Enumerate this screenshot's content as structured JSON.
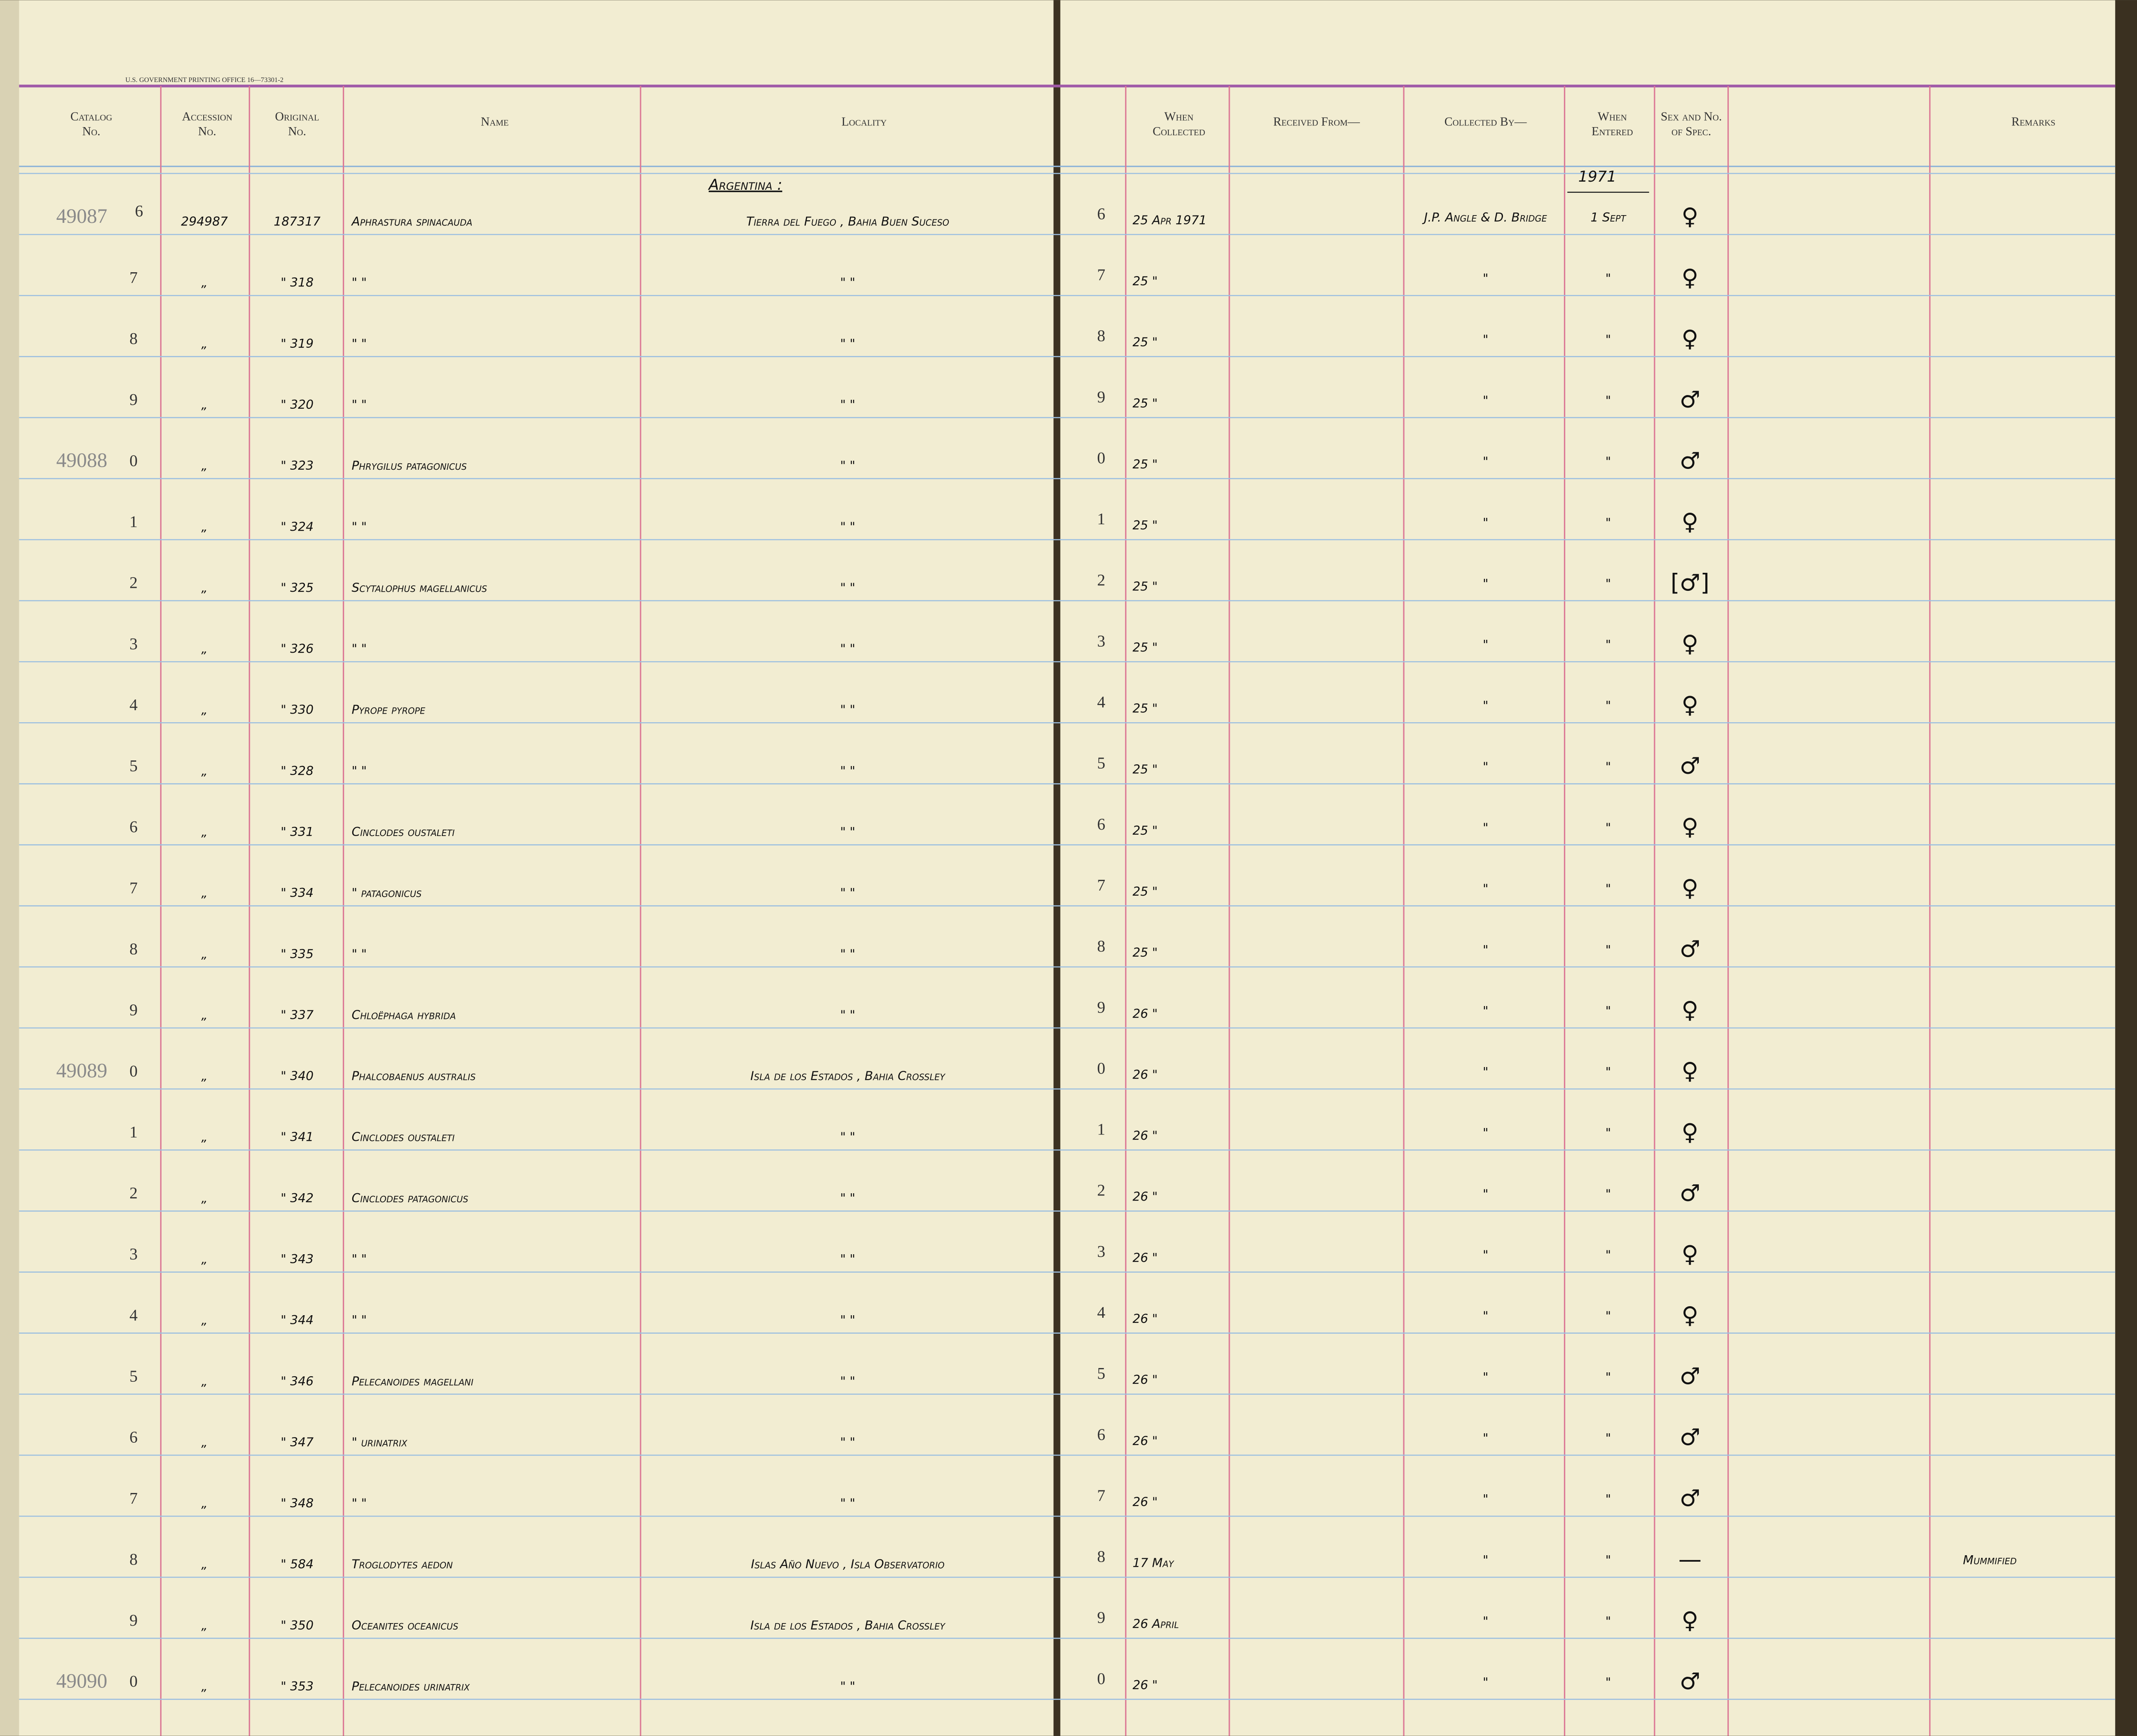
{
  "header": {
    "printer": "U.S. GOVERNMENT PRINTING OFFICE   16—73301-2",
    "left_columns": [
      "Catalog No.",
      "Accession No.",
      "Original No.",
      "Name",
      "Locality"
    ],
    "right_columns": [
      "When Collected",
      "Received From—",
      "Collected By—",
      "When Entered",
      "Sex and No. of Spec.",
      "Remarks"
    ],
    "country": "Argentina :",
    "year": "1971"
  },
  "rows": [
    {
      "catalog": "49087",
      "digit": "6",
      "accession": "294987",
      "original": "187317",
      "name": "Aphrastura spinacauda",
      "locality": "Tierra del Fuego , Bahia Buen Suceso",
      "collected": "25 Apr 1971",
      "collected_by": "J.P. Angle & D. Bridge",
      "entered": "1 Sept",
      "sex": "♀"
    },
    {
      "digit": "7",
      "accession": "„",
      "original": "\" 318",
      "name": "\"     \"",
      "locality": "\"                    \"",
      "collected": "25  \"",
      "collected_by": "\"",
      "entered": "\"",
      "sex": "♀"
    },
    {
      "digit": "8",
      "accession": "„",
      "original": "\" 319",
      "name": "\"     \"",
      "locality": "\"                    \"",
      "collected": "25  \"",
      "collected_by": "\"",
      "entered": "\"",
      "sex": "♀"
    },
    {
      "digit": "9",
      "accession": "„",
      "original": "\" 320",
      "name": "\"     \"",
      "locality": "\"                    \"",
      "collected": "25  \"",
      "collected_by": "\"",
      "entered": "\"",
      "sex": "♂"
    },
    {
      "catalog": "49088",
      "digit": "0",
      "accession": "„",
      "original": "\" 323",
      "name": "Phrygilus patagonicus",
      "locality": "\"                    \"",
      "collected": "25  \"",
      "collected_by": "\"",
      "entered": "\"",
      "sex": "♂"
    },
    {
      "digit": "1",
      "accession": "„",
      "original": "\" 324",
      "name": "\"     \"",
      "locality": "\"                    \"",
      "collected": "25  \"",
      "collected_by": "\"",
      "entered": "\"",
      "sex": "♀"
    },
    {
      "digit": "2",
      "accession": "„",
      "original": "\" 325",
      "name": "Scytalophus magellanicus",
      "locality": "\"                    \"",
      "collected": "25  \"",
      "collected_by": "\"",
      "entered": "\"",
      "sex": "[♂]"
    },
    {
      "digit": "3",
      "accession": "„",
      "original": "\" 326",
      "name": "\"     \"",
      "locality": "\"                    \"",
      "collected": "25  \"",
      "collected_by": "\"",
      "entered": "\"",
      "sex": "♀"
    },
    {
      "digit": "4",
      "accession": "„",
      "original": "\" 330",
      "name": "Pyrope  pyrope",
      "locality": "\"                    \"",
      "collected": "25  \"",
      "collected_by": "\"",
      "entered": "\"",
      "sex": "♀"
    },
    {
      "digit": "5",
      "accession": "„",
      "original": "\" 328",
      "name": "\"     \"",
      "locality": "\"                    \"",
      "collected": "25  \"",
      "collected_by": "\"",
      "entered": "\"",
      "sex": "♂"
    },
    {
      "digit": "6",
      "accession": "„",
      "original": "\" 331",
      "name": "Cinclodes oustaleti",
      "locality": "\"                    \"",
      "collected": "25  \"",
      "collected_by": "\"",
      "entered": "\"",
      "sex": "♀"
    },
    {
      "digit": "7",
      "accession": "„",
      "original": "\" 334",
      "name": "\"     patagonicus",
      "locality": "\"                    \"",
      "collected": "25  \"",
      "collected_by": "\"",
      "entered": "\"",
      "sex": "♀"
    },
    {
      "digit": "8",
      "accession": "„",
      "original": "\" 335",
      "name": "\"     \"",
      "locality": "\"                    \"",
      "collected": "25  \"",
      "collected_by": "\"",
      "entered": "\"",
      "sex": "♂"
    },
    {
      "digit": "9",
      "accession": "„",
      "original": "\" 337",
      "name": "Chloëphaga hybrida",
      "locality": "\"                    \"",
      "collected": "26  \"",
      "collected_by": "\"",
      "entered": "\"",
      "sex": "♀"
    },
    {
      "catalog": "49089",
      "digit": "0",
      "accession": "„",
      "original": "\" 340",
      "name": "Phalcobaenus australis",
      "locality": "Isla de los Estados , Bahia Crossley",
      "collected": "26  \"",
      "collected_by": "\"",
      "entered": "\"",
      "sex": "♀"
    },
    {
      "digit": "1",
      "accession": "„",
      "original": "\" 341",
      "name": "Cinclodes oustaleti",
      "locality": "\"                    \"",
      "collected": "26  \"",
      "collected_by": "\"",
      "entered": "\"",
      "sex": "♀"
    },
    {
      "digit": "2",
      "accession": "„",
      "original": "\" 342",
      "name": "Cinclodes patagonicus",
      "locality": "\"                    \"",
      "collected": "26  \"",
      "collected_by": "\"",
      "entered": "\"",
      "sex": "♂"
    },
    {
      "digit": "3",
      "accession": "„",
      "original": "\" 343",
      "name": "\"     \"",
      "locality": "\"                    \"",
      "collected": "26  \"",
      "collected_by": "\"",
      "entered": "\"",
      "sex": "♀"
    },
    {
      "digit": "4",
      "accession": "„",
      "original": "\" 344",
      "name": "\"     \"",
      "locality": "\"                    \"",
      "collected": "26  \"",
      "collected_by": "\"",
      "entered": "\"",
      "sex": "♀"
    },
    {
      "digit": "5",
      "accession": "„",
      "original": "\" 346",
      "name": "Pelecanoides magellani",
      "locality": "\"                    \"",
      "collected": "26  \"",
      "collected_by": "\"",
      "entered": "\"",
      "sex": "♂"
    },
    {
      "digit": "6",
      "accession": "„",
      "original": "\" 347",
      "name": "\"     urinatrix",
      "locality": "\"                    \"",
      "collected": "26  \"",
      "collected_by": "\"",
      "entered": "\"",
      "sex": "♂"
    },
    {
      "digit": "7",
      "accession": "„",
      "original": "\" 348",
      "name": "\"     \"",
      "locality": "\"                    \"",
      "collected": "26  \"",
      "collected_by": "\"",
      "entered": "\"",
      "sex": "♂"
    },
    {
      "digit": "8",
      "accession": "„",
      "original": "\" 584",
      "name": "Troglodytes  aedon",
      "locality": "Islas Año Nuevo , Isla Observatorio",
      "collected": "17 May",
      "collected_by": "\"",
      "entered": "\"",
      "sex": "—",
      "remarks": "Mummified"
    },
    {
      "digit": "9",
      "accession": "„",
      "original": "\" 350",
      "name": "Oceanites oceanicus",
      "locality": "Isla de los Estados , Bahia Crossley",
      "collected": "26 April",
      "collected_by": "\"",
      "entered": "\"",
      "sex": "♀"
    },
    {
      "catalog": "49090",
      "digit": "0",
      "accession": "„",
      "original": "\" 353",
      "name": "Pelecanoides urinatrix",
      "locality": "\"                    \"",
      "collected": "26  \"",
      "collected_by": "\"",
      "entered": "\"",
      "sex": "♂"
    }
  ]
}
